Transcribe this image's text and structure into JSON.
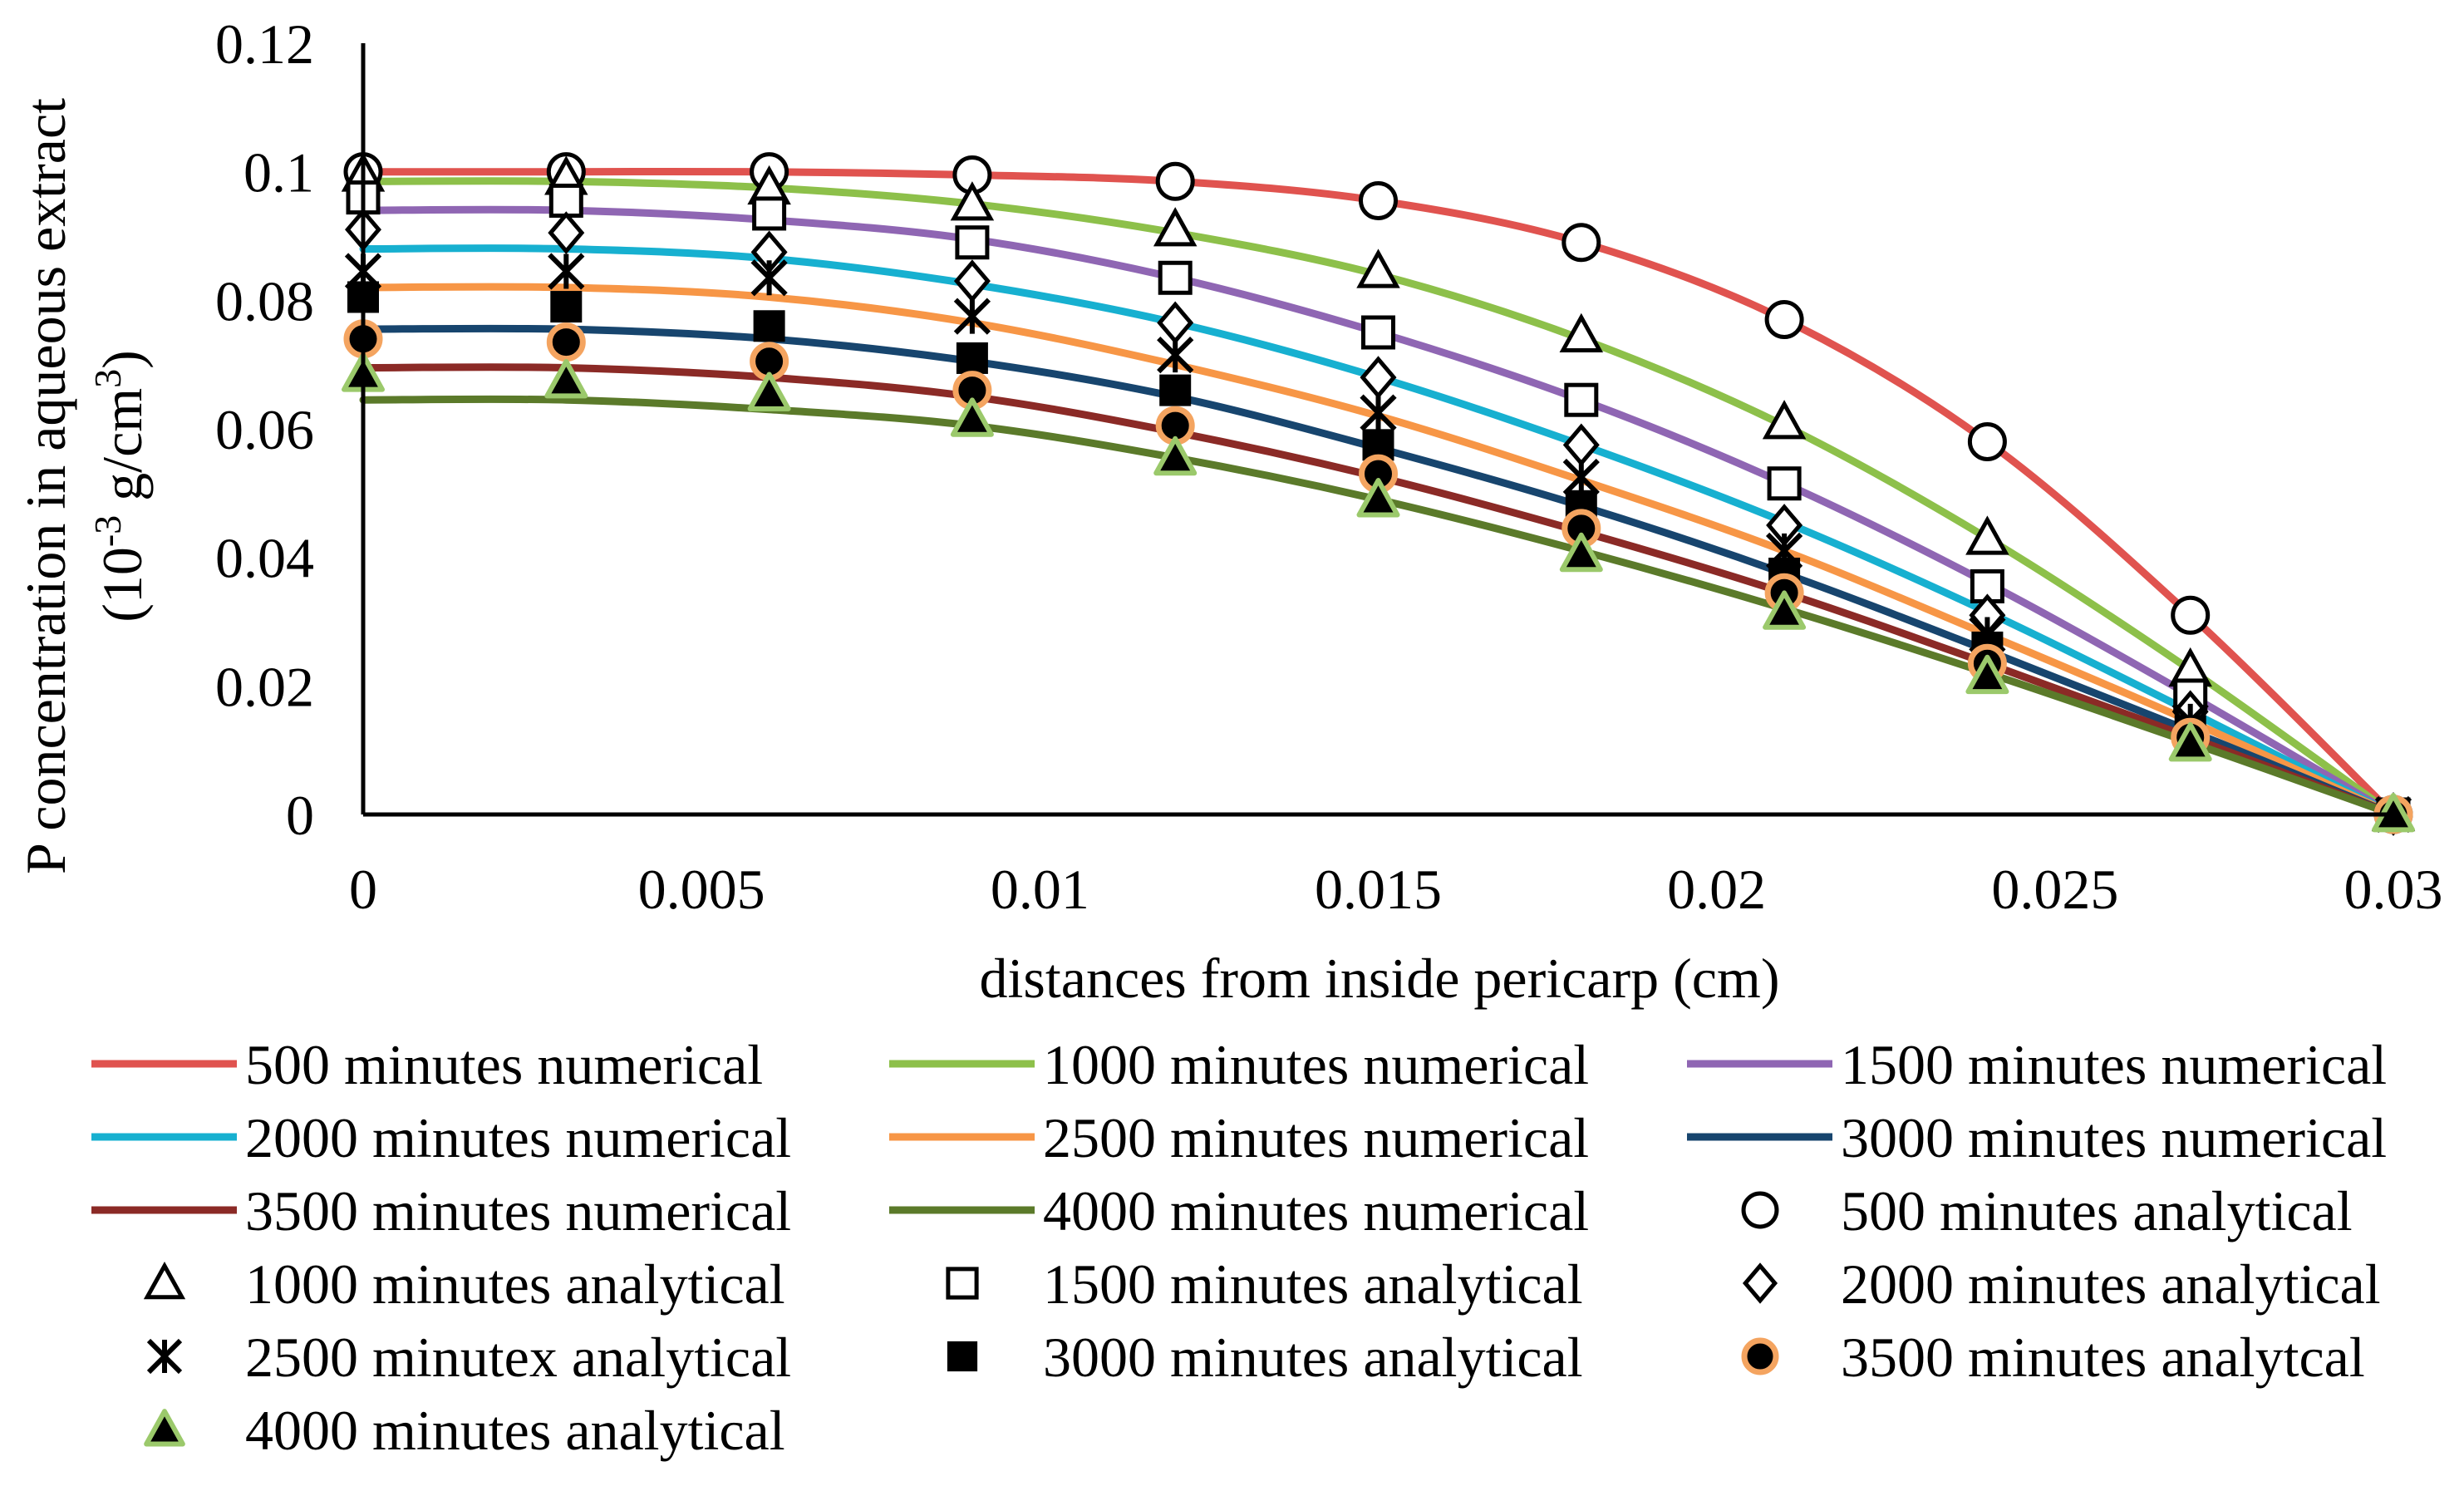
{
  "chart_data": {
    "type": "line",
    "title": "",
    "xlabel": "distances from inside pericarp (cm)",
    "ylabel_line1": "P concentration in aqueous extract",
    "ylabel_line2": "(10",
    "ylabel_exp1": "-3",
    "ylabel_unit": " g/cm",
    "ylabel_exp2": "3",
    "ylabel_close": ")",
    "xlim": [
      0,
      0.03
    ],
    "ylim": [
      0,
      0.12
    ],
    "x_ticks": [
      0,
      0.005,
      0.01,
      0.015,
      0.02,
      0.025,
      0.03
    ],
    "x_tick_labels": [
      "0",
      "0.005",
      "0.01",
      "0.015",
      "0.02",
      "0.025",
      "0.03"
    ],
    "y_ticks": [
      0,
      0.02,
      0.04,
      0.06,
      0.08,
      0.1,
      0.12
    ],
    "y_tick_labels": [
      "0",
      "0.02",
      "0.04",
      "0.06",
      "0.08",
      "0.1",
      "0.12"
    ],
    "x": [
      0,
      0.003,
      0.006,
      0.009,
      0.012,
      0.015,
      0.018,
      0.021,
      0.024,
      0.027,
      0.03
    ],
    "series": [
      {
        "name": "500 minutes numerical",
        "kind": "line",
        "color": "#E0534F",
        "values": [
          0.1,
          0.1,
          0.1,
          0.0995,
          0.0985,
          0.0955,
          0.089,
          0.077,
          0.058,
          0.031,
          0.0
        ]
      },
      {
        "name": "1000 minutes numerical",
        "kind": "line",
        "color": "#8DC04A",
        "values": [
          0.0985,
          0.0985,
          0.0975,
          0.095,
          0.0905,
          0.084,
          0.074,
          0.0605,
          0.043,
          0.0225,
          0.0
        ]
      },
      {
        "name": "1500 minutes numerical",
        "kind": "line",
        "color": "#8F66B3",
        "values": [
          0.094,
          0.094,
          0.0925,
          0.0895,
          0.0835,
          0.075,
          0.0645,
          0.0515,
          0.036,
          0.0185,
          0.0
        ]
      },
      {
        "name": "2000 minutes numerical",
        "kind": "line",
        "color": "#17B0D0",
        "values": [
          0.088,
          0.088,
          0.0865,
          0.0825,
          0.0765,
          0.068,
          0.0575,
          0.0455,
          0.0315,
          0.016,
          0.0
        ]
      },
      {
        "name": "2500 minutes numerical",
        "kind": "line",
        "color": "#F79646",
        "values": [
          0.082,
          0.082,
          0.0805,
          0.0765,
          0.07,
          0.062,
          0.052,
          0.041,
          0.028,
          0.0145,
          0.0
        ]
      },
      {
        "name": "3000 minutes numerical",
        "kind": "line",
        "color": "#17456E",
        "values": [
          0.0755,
          0.0755,
          0.074,
          0.0705,
          0.065,
          0.057,
          0.048,
          0.0375,
          0.0255,
          0.013,
          0.0
        ]
      },
      {
        "name": "3500 minutes numerical",
        "kind": "line",
        "color": "#8B2A26",
        "values": [
          0.0695,
          0.0695,
          0.068,
          0.065,
          0.0595,
          0.0525,
          0.044,
          0.0345,
          0.0235,
          0.012,
          0.0
        ]
      },
      {
        "name": "4000 minutes numerical",
        "kind": "line",
        "color": "#5B7A2A",
        "values": [
          0.0645,
          0.0645,
          0.063,
          0.0605,
          0.0555,
          0.049,
          0.041,
          0.032,
          0.022,
          0.0112,
          0.0
        ]
      },
      {
        "name": "500 minutes analytical",
        "kind": "marker",
        "marker": "circle-open",
        "values": [
          0.1,
          0.1,
          0.1,
          0.0995,
          0.0985,
          0.0955,
          0.089,
          0.077,
          0.058,
          0.031,
          0.0
        ]
      },
      {
        "name": "1000 minutes analytical",
        "kind": "marker",
        "marker": "triangle-open",
        "values": [
          0.0995,
          0.099,
          0.0975,
          0.095,
          0.091,
          0.0845,
          0.0745,
          0.061,
          0.043,
          0.0225,
          0.0
        ]
      },
      {
        "name": "1500 minutes analytical",
        "kind": "marker",
        "marker": "square-open",
        "values": [
          0.096,
          0.0955,
          0.0935,
          0.089,
          0.0835,
          0.075,
          0.0645,
          0.0515,
          0.0355,
          0.0185,
          0.0
        ]
      },
      {
        "name": "2000 minutes analytical",
        "kind": "marker",
        "marker": "diamond-open",
        "values": [
          0.091,
          0.0905,
          0.0875,
          0.083,
          0.0765,
          0.068,
          0.0575,
          0.045,
          0.031,
          0.016,
          0.0
        ]
      },
      {
        "name": "2500 minutex analytical",
        "kind": "marker",
        "marker": "asterisk",
        "values": [
          0.0845,
          0.0845,
          0.0835,
          0.0775,
          0.0715,
          0.0625,
          0.0525,
          0.041,
          0.028,
          0.0145,
          0.0
        ]
      },
      {
        "name": "3000 minutes analytical",
        "kind": "marker",
        "marker": "square-filled",
        "values": [
          0.0805,
          0.079,
          0.076,
          0.071,
          0.066,
          0.0575,
          0.048,
          0.0375,
          0.026,
          0.013,
          0.0
        ]
      },
      {
        "name": "3500 minutes analytcal",
        "kind": "marker",
        "marker": "circle-filled-orange",
        "values": [
          0.074,
          0.0735,
          0.0705,
          0.066,
          0.0605,
          0.053,
          0.0445,
          0.0345,
          0.0235,
          0.012,
          0.0
        ]
      },
      {
        "name": "4000 minutes analytical",
        "kind": "marker",
        "marker": "triangle-filled-green",
        "values": [
          0.0685,
          0.0675,
          0.0655,
          0.0615,
          0.0555,
          0.049,
          0.0405,
          0.0315,
          0.0215,
          0.011,
          0.0
        ]
      }
    ],
    "legend": "bottom"
  }
}
